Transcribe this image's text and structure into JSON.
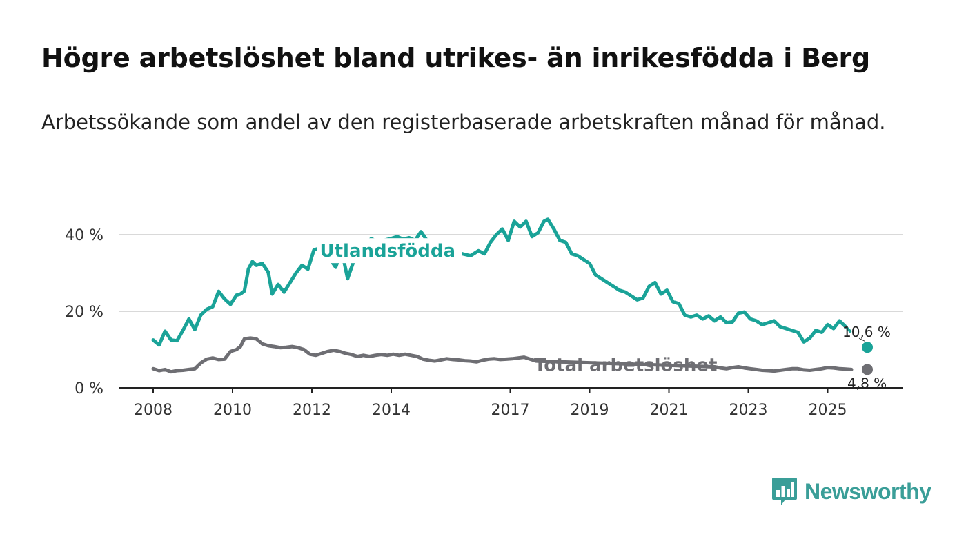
{
  "title": "Högre arbetslöshet bland utrikes- än inrikesfödda i Berg",
  "subtitle": "Arbetssökande som andel av den registerbaserade arbetskraften månad för månad.",
  "brand": {
    "name": "Newsworthy",
    "icon": "bar-chart-speech-icon",
    "color": "#3a9e98"
  },
  "chart_data": {
    "type": "line",
    "title": "Högre arbetslöshet bland utrikes- än inrikesfödda i Berg",
    "xlabel": "",
    "ylabel": "",
    "xlim": [
      2008,
      2026
    ],
    "ylim": [
      0,
      40
    ],
    "y_ticks": [
      0,
      20,
      40
    ],
    "y_tick_labels": [
      "0 %",
      "20 %",
      "40 %"
    ],
    "x_ticks": [
      2008,
      2010,
      2012,
      2014,
      2017,
      2019,
      2021,
      2023,
      2025
    ],
    "x_tick_labels": [
      "2008",
      "2010",
      "2012",
      "2014",
      "2017",
      "2019",
      "2021",
      "2023",
      "2025"
    ],
    "grid": true,
    "series": [
      {
        "name": "Utlandsfödda",
        "color": "#1aa398",
        "end_label": "10,6 %",
        "points": [
          [
            2008.0,
            12.5
          ],
          [
            2008.15,
            11.2
          ],
          [
            2008.3,
            14.8
          ],
          [
            2008.45,
            12.5
          ],
          [
            2008.6,
            12.3
          ],
          [
            2008.75,
            15.0
          ],
          [
            2008.9,
            18.0
          ],
          [
            2009.05,
            15.2
          ],
          [
            2009.2,
            19.0
          ],
          [
            2009.35,
            20.5
          ],
          [
            2009.5,
            21.2
          ],
          [
            2009.65,
            25.2
          ],
          [
            2009.8,
            23.2
          ],
          [
            2009.95,
            21.8
          ],
          [
            2010.1,
            24.2
          ],
          [
            2010.2,
            24.5
          ],
          [
            2010.3,
            25.3
          ],
          [
            2010.4,
            31.0
          ],
          [
            2010.5,
            33.0
          ],
          [
            2010.6,
            32.0
          ],
          [
            2010.75,
            32.5
          ],
          [
            2010.9,
            30.2
          ],
          [
            2011.0,
            24.5
          ],
          [
            2011.15,
            27.0
          ],
          [
            2011.3,
            25.0
          ],
          [
            2011.45,
            27.5
          ],
          [
            2011.6,
            30.0
          ],
          [
            2011.75,
            32.0
          ],
          [
            2011.9,
            31.0
          ],
          [
            2012.05,
            36.0
          ],
          [
            2012.2,
            36.5
          ],
          [
            2012.35,
            36.8
          ],
          [
            2012.5,
            33.0
          ],
          [
            2012.6,
            31.5
          ],
          [
            2012.75,
            36.0
          ],
          [
            2012.9,
            28.5
          ],
          [
            2013.05,
            33.0
          ],
          [
            2013.2,
            36.0
          ],
          [
            2013.35,
            37.5
          ],
          [
            2013.5,
            39.0
          ],
          [
            2013.65,
            38.0
          ],
          [
            2013.8,
            38.5
          ],
          [
            2014.0,
            39.0
          ],
          [
            2014.15,
            39.5
          ],
          [
            2014.3,
            38.8
          ],
          [
            2014.45,
            39.2
          ],
          [
            2014.6,
            38.5
          ],
          [
            2014.75,
            40.8
          ],
          [
            2014.9,
            38.5
          ],
          [
            2015.05,
            37.5
          ],
          [
            2015.2,
            38.0
          ],
          [
            2015.4,
            36.5
          ],
          [
            2015.6,
            35.8
          ],
          [
            2015.8,
            35.0
          ],
          [
            2016.0,
            34.5
          ],
          [
            2016.2,
            35.8
          ],
          [
            2016.35,
            35.0
          ],
          [
            2016.5,
            38.0
          ],
          [
            2016.65,
            40.0
          ],
          [
            2016.8,
            41.5
          ],
          [
            2016.95,
            38.5
          ],
          [
            2017.1,
            43.5
          ],
          [
            2017.25,
            42.0
          ],
          [
            2017.4,
            43.5
          ],
          [
            2017.55,
            39.5
          ],
          [
            2017.7,
            40.5
          ],
          [
            2017.85,
            43.5
          ],
          [
            2017.95,
            44.0
          ],
          [
            2018.1,
            41.5
          ],
          [
            2018.25,
            38.5
          ],
          [
            2018.4,
            38.0
          ],
          [
            2018.55,
            35.0
          ],
          [
            2018.7,
            34.5
          ],
          [
            2018.85,
            33.5
          ],
          [
            2019.0,
            32.5
          ],
          [
            2019.15,
            29.5
          ],
          [
            2019.3,
            28.5
          ],
          [
            2019.45,
            27.5
          ],
          [
            2019.6,
            26.5
          ],
          [
            2019.75,
            25.5
          ],
          [
            2019.9,
            25.0
          ],
          [
            2020.05,
            24.0
          ],
          [
            2020.2,
            23.0
          ],
          [
            2020.35,
            23.5
          ],
          [
            2020.5,
            26.5
          ],
          [
            2020.65,
            27.5
          ],
          [
            2020.8,
            24.5
          ],
          [
            2020.95,
            25.5
          ],
          [
            2021.1,
            22.5
          ],
          [
            2021.25,
            22.0
          ],
          [
            2021.4,
            19.0
          ],
          [
            2021.55,
            18.5
          ],
          [
            2021.7,
            19.0
          ],
          [
            2021.85,
            18.0
          ],
          [
            2022.0,
            18.8
          ],
          [
            2022.15,
            17.5
          ],
          [
            2022.3,
            18.5
          ],
          [
            2022.45,
            17.0
          ],
          [
            2022.6,
            17.2
          ],
          [
            2022.75,
            19.5
          ],
          [
            2022.9,
            19.8
          ],
          [
            2023.05,
            18.0
          ],
          [
            2023.2,
            17.5
          ],
          [
            2023.35,
            16.5
          ],
          [
            2023.5,
            17.0
          ],
          [
            2023.65,
            17.5
          ],
          [
            2023.8,
            16.0
          ],
          [
            2023.95,
            15.5
          ],
          [
            2024.1,
            15.0
          ],
          [
            2024.25,
            14.5
          ],
          [
            2024.4,
            12.0
          ],
          [
            2024.55,
            13.0
          ],
          [
            2024.7,
            15.0
          ],
          [
            2024.85,
            14.5
          ],
          [
            2025.0,
            16.5
          ],
          [
            2025.15,
            15.5
          ],
          [
            2025.3,
            17.5
          ],
          [
            2025.45,
            16.0
          ],
          [
            2026.0,
            10.6
          ]
        ]
      },
      {
        "name": "Total arbetslöshet",
        "color": "#6e6e73",
        "end_label": "4,8 %",
        "points": [
          [
            2008.0,
            5.0
          ],
          [
            2008.15,
            4.5
          ],
          [
            2008.3,
            4.8
          ],
          [
            2008.45,
            4.2
          ],
          [
            2008.6,
            4.5
          ],
          [
            2008.75,
            4.6
          ],
          [
            2008.9,
            4.8
          ],
          [
            2009.05,
            5.0
          ],
          [
            2009.2,
            6.5
          ],
          [
            2009.35,
            7.5
          ],
          [
            2009.5,
            7.8
          ],
          [
            2009.65,
            7.4
          ],
          [
            2009.8,
            7.5
          ],
          [
            2009.95,
            9.5
          ],
          [
            2010.1,
            10.0
          ],
          [
            2010.2,
            10.8
          ],
          [
            2010.3,
            12.8
          ],
          [
            2010.45,
            13.0
          ],
          [
            2010.6,
            12.8
          ],
          [
            2010.75,
            11.5
          ],
          [
            2010.9,
            11.0
          ],
          [
            2011.05,
            10.8
          ],
          [
            2011.2,
            10.5
          ],
          [
            2011.35,
            10.6
          ],
          [
            2011.5,
            10.8
          ],
          [
            2011.65,
            10.5
          ],
          [
            2011.8,
            10.0
          ],
          [
            2011.95,
            8.8
          ],
          [
            2012.1,
            8.5
          ],
          [
            2012.25,
            9.0
          ],
          [
            2012.4,
            9.5
          ],
          [
            2012.55,
            9.8
          ],
          [
            2012.7,
            9.5
          ],
          [
            2012.85,
            9.0
          ],
          [
            2013.0,
            8.7
          ],
          [
            2013.15,
            8.2
          ],
          [
            2013.3,
            8.5
          ],
          [
            2013.45,
            8.2
          ],
          [
            2013.6,
            8.5
          ],
          [
            2013.75,
            8.7
          ],
          [
            2013.9,
            8.5
          ],
          [
            2014.05,
            8.8
          ],
          [
            2014.2,
            8.5
          ],
          [
            2014.35,
            8.8
          ],
          [
            2014.5,
            8.5
          ],
          [
            2014.65,
            8.2
          ],
          [
            2014.8,
            7.5
          ],
          [
            2014.95,
            7.2
          ],
          [
            2015.1,
            7.0
          ],
          [
            2015.25,
            7.3
          ],
          [
            2015.4,
            7.6
          ],
          [
            2015.55,
            7.4
          ],
          [
            2015.7,
            7.3
          ],
          [
            2015.85,
            7.1
          ],
          [
            2016.0,
            7.0
          ],
          [
            2016.15,
            6.8
          ],
          [
            2016.3,
            7.2
          ],
          [
            2016.45,
            7.5
          ],
          [
            2016.6,
            7.6
          ],
          [
            2016.75,
            7.4
          ],
          [
            2016.9,
            7.5
          ],
          [
            2017.05,
            7.6
          ],
          [
            2017.2,
            7.8
          ],
          [
            2017.35,
            8.0
          ],
          [
            2017.5,
            7.5
          ],
          [
            2017.65,
            7.0
          ],
          [
            2022.15,
            5.5
          ],
          [
            2022.3,
            5.2
          ],
          [
            2022.45,
            5.0
          ],
          [
            2022.6,
            5.3
          ],
          [
            2022.75,
            5.5
          ],
          [
            2022.9,
            5.2
          ],
          [
            2023.05,
            5.0
          ],
          [
            2023.2,
            4.8
          ],
          [
            2023.35,
            4.6
          ],
          [
            2023.5,
            4.5
          ],
          [
            2023.65,
            4.4
          ],
          [
            2023.8,
            4.6
          ],
          [
            2023.95,
            4.8
          ],
          [
            2024.1,
            5.0
          ],
          [
            2024.25,
            5.0
          ],
          [
            2024.4,
            4.7
          ],
          [
            2024.55,
            4.6
          ],
          [
            2024.7,
            4.8
          ],
          [
            2024.85,
            5.0
          ],
          [
            2025.0,
            5.3
          ],
          [
            2025.15,
            5.2
          ],
          [
            2025.3,
            5.0
          ],
          [
            2025.45,
            4.9
          ],
          [
            2025.6,
            4.8
          ],
          [
            2026.0,
            4.8
          ]
        ]
      }
    ]
  }
}
